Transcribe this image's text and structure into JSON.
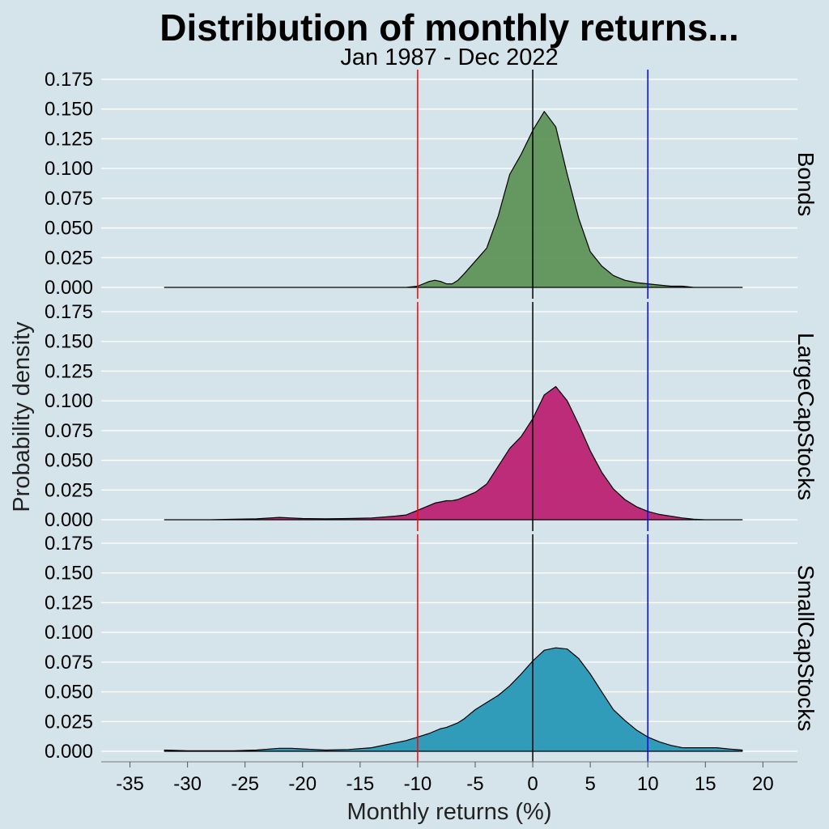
{
  "chart_data": {
    "type": "area",
    "title": "Distribution of monthly returns...",
    "subtitle": "Jan 1987 - Dec 2022",
    "xlabel": "Monthly returns (%)",
    "ylabel": "Probability density",
    "xlim": [
      -37.5,
      23
    ],
    "ylim": [
      0,
      0.175
    ],
    "x_ticks": [
      -35,
      -30,
      -25,
      -20,
      -15,
      -10,
      -5,
      0,
      5,
      10,
      15,
      20
    ],
    "y_ticks": [
      0,
      0.025,
      0.05,
      0.075,
      0.1,
      0.125,
      0.15,
      0.175
    ],
    "y_tick_labels": [
      "0.000",
      "0.025",
      "0.050",
      "0.075",
      "0.100",
      "0.125",
      "0.150",
      "0.175"
    ],
    "grid": "horizontal",
    "reference_lines": [
      {
        "x": -10,
        "color": "#ff0000"
      },
      {
        "x": 0,
        "color": "#000000"
      },
      {
        "x": 10,
        "color": "#0000ff"
      }
    ],
    "x": [
      -32,
      -30,
      -28,
      -26,
      -24,
      -22,
      -21,
      -20,
      -18,
      -16,
      -14,
      -12,
      -11,
      -10,
      -9,
      -8.5,
      -8,
      -7.5,
      -7,
      -6.5,
      -6,
      -5,
      -4,
      -3,
      -2,
      -1,
      0,
      1,
      2,
      3,
      4,
      5,
      6,
      7,
      8,
      9,
      10,
      11,
      12,
      13,
      14,
      15,
      16,
      17,
      18.2
    ],
    "series": [
      {
        "name": "Bonds",
        "color": "#5f9459",
        "values": [
          0,
          0,
          0,
          0,
          0,
          0,
          0,
          0,
          0,
          0,
          0,
          0,
          0,
          0.001,
          0.005,
          0.006,
          0.005,
          0.003,
          0.003,
          0.006,
          0.011,
          0.022,
          0.033,
          0.06,
          0.095,
          0.112,
          0.132,
          0.148,
          0.135,
          0.095,
          0.058,
          0.03,
          0.018,
          0.01,
          0.006,
          0.004,
          0.003,
          0.002,
          0.001,
          0.001,
          0,
          0,
          0,
          0,
          0
        ]
      },
      {
        "name": "LargeCapStocks",
        "color": "#bc2272",
        "values": [
          0,
          0,
          0,
          0.0005,
          0.0008,
          0.002,
          0.0015,
          0.001,
          0.0008,
          0.001,
          0.0015,
          0.003,
          0.004,
          0.008,
          0.012,
          0.014,
          0.015,
          0.016,
          0.016,
          0.017,
          0.019,
          0.023,
          0.03,
          0.045,
          0.06,
          0.07,
          0.085,
          0.105,
          0.112,
          0.1,
          0.08,
          0.058,
          0.04,
          0.026,
          0.017,
          0.011,
          0.007,
          0.0045,
          0.003,
          0.0015,
          0.0005,
          0,
          0,
          0,
          0
        ]
      },
      {
        "name": "SmallCapStocks",
        "color": "#2798b6",
        "values": [
          0.001,
          0.0005,
          0.0005,
          0.0005,
          0.001,
          0.0025,
          0.0025,
          0.002,
          0.001,
          0.0015,
          0.003,
          0.007,
          0.009,
          0.012,
          0.015,
          0.017,
          0.019,
          0.02,
          0.022,
          0.024,
          0.027,
          0.035,
          0.041,
          0.047,
          0.055,
          0.065,
          0.076,
          0.085,
          0.087,
          0.086,
          0.078,
          0.065,
          0.05,
          0.035,
          0.026,
          0.018,
          0.012,
          0.008,
          0.005,
          0.003,
          0.003,
          0.003,
          0.003,
          0.002,
          0.001
        ]
      }
    ]
  }
}
